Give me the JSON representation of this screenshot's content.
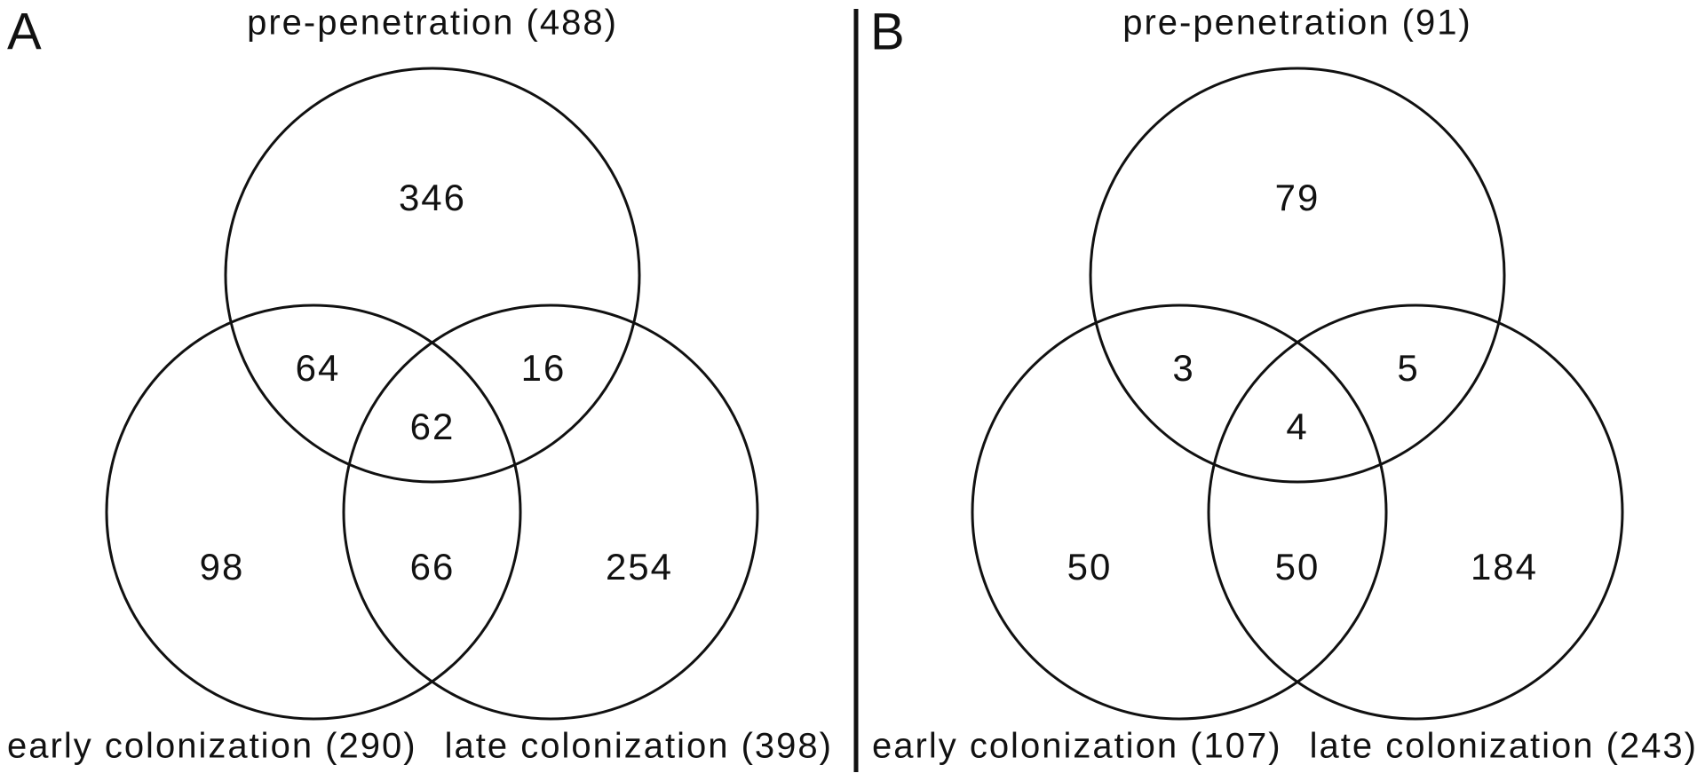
{
  "panels": [
    {
      "letter": "A",
      "sets": {
        "top": "pre-penetration (488)",
        "left": "early colonization (290)",
        "right": "late colonization (398)"
      },
      "regions": {
        "top_only": "346",
        "top_left": "64",
        "top_right": "16",
        "all_three": "62",
        "left_only": "98",
        "left_right": "66",
        "right_only": "254"
      }
    },
    {
      "letter": "B",
      "sets": {
        "top": "pre-penetration (91)",
        "left": "early colonization (107)",
        "right": "late colonization (243)"
      },
      "regions": {
        "top_only": "79",
        "top_left": "3",
        "top_right": "5",
        "all_three": "4",
        "left_only": "50",
        "left_right": "50",
        "right_only": "184"
      }
    }
  ]
}
